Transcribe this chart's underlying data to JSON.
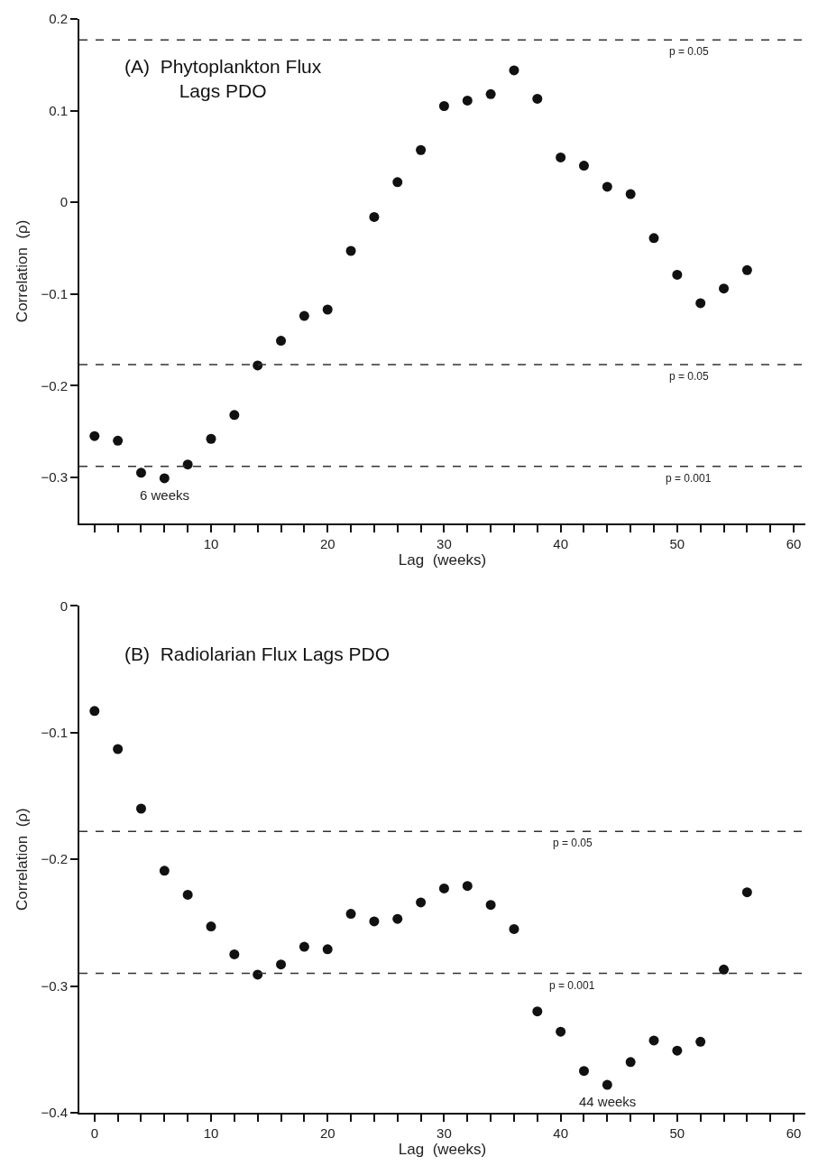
{
  "chart_data": [
    {
      "type": "scatter",
      "title": "(A)  Phytoplankton Flux\nLags PDO",
      "xlabel": "Lag  (weeks)",
      "ylabel": "Correlation  (ρ)",
      "marker": "circle",
      "x": [
        0,
        2,
        4,
        6,
        8,
        10,
        12,
        14,
        16,
        18,
        20,
        22,
        24,
        26,
        28,
        30,
        32,
        34,
        36,
        38,
        40,
        42,
        44,
        46,
        48,
        50,
        52,
        54,
        56
      ],
      "series": [
        {
          "color": "#111111",
          "values": [
            -0.255,
            -0.26,
            -0.295,
            -0.301,
            -0.286,
            -0.258,
            -0.232,
            -0.178,
            -0.151,
            -0.124,
            -0.117,
            -0.053,
            -0.016,
            0.022,
            0.057,
            0.105,
            0.111,
            0.118,
            0.144,
            0.113,
            0.049,
            0.04,
            0.017,
            0.009,
            -0.039,
            -0.079,
            -0.11,
            -0.094,
            -0.074
          ]
        }
      ],
      "xlim": [
        -1.3,
        61
      ],
      "ylim": [
        -0.35,
        0.2
      ],
      "xticks": [
        {
          "value": 0,
          "label": null
        },
        {
          "value": 2,
          "label": null
        },
        {
          "value": 4,
          "label": null
        },
        {
          "value": 6,
          "label": null
        },
        {
          "value": 8,
          "label": null
        },
        10,
        {
          "value": 12,
          "label": null
        },
        {
          "value": 14,
          "label": null
        },
        {
          "value": 16,
          "label": null
        },
        {
          "value": 18,
          "label": null
        },
        20,
        {
          "value": 22,
          "label": null
        },
        {
          "value": 24,
          "label": null
        },
        {
          "value": 26,
          "label": null
        },
        {
          "value": 28,
          "label": null
        },
        30,
        {
          "value": 32,
          "label": null
        },
        {
          "value": 34,
          "label": null
        },
        {
          "value": 36,
          "label": null
        },
        {
          "value": 38,
          "label": null
        },
        40,
        {
          "value": 42,
          "label": null
        },
        {
          "value": 44,
          "label": null
        },
        {
          "value": 46,
          "label": null
        },
        {
          "value": 48,
          "label": null
        },
        50,
        {
          "value": 52,
          "label": null
        },
        {
          "value": 54,
          "label": null
        },
        {
          "value": 56,
          "label": null
        },
        {
          "value": 58,
          "label": null
        },
        60
      ],
      "yticks": [
        {
          "value": -0.3,
          "label": "−0.3"
        },
        {
          "value": -0.2,
          "label": "−0.2"
        },
        {
          "value": -0.1,
          "label": "−0.1"
        },
        0,
        0.1,
        0.2
      ],
      "ref_lines": [
        {
          "axis": "y",
          "value": 0.177,
          "line_style": "dashed",
          "color": "#333333"
        },
        {
          "axis": "y",
          "value": -0.177,
          "line_style": "dashed",
          "color": "#333333"
        },
        {
          "axis": "y",
          "value": -0.288,
          "line_style": "dashed",
          "color": "#333333"
        }
      ],
      "annotations": [
        {
          "text": "6 weeks",
          "x": 6,
          "y": -0.301
        },
        {
          "text": "p = 0.05",
          "x": 51,
          "y": 0.177
        },
        {
          "text": "p = 0.05",
          "x": 51,
          "y": -0.177
        },
        {
          "text": "p = 0.001",
          "x": 51,
          "y": -0.288
        }
      ]
    },
    {
      "type": "scatter",
      "title": "(B)  Radiolarian Flux Lags PDO",
      "xlabel": "Lag  (weeks)",
      "ylabel": "Correlation  (ρ)",
      "marker": "circle",
      "x": [
        0,
        2,
        4,
        6,
        8,
        10,
        12,
        14,
        16,
        18,
        20,
        22,
        24,
        26,
        28,
        30,
        32,
        34,
        36,
        38,
        40,
        42,
        44,
        46,
        48,
        50,
        52,
        54,
        56
      ],
      "series": [
        {
          "color": "#111111",
          "values": [
            -0.083,
            -0.113,
            -0.16,
            -0.209,
            -0.228,
            -0.253,
            -0.275,
            -0.291,
            -0.283,
            -0.269,
            -0.271,
            -0.243,
            -0.249,
            -0.247,
            -0.234,
            -0.223,
            -0.221,
            -0.236,
            -0.255,
            -0.32,
            -0.336,
            -0.367,
            -0.378,
            -0.36,
            -0.343,
            -0.351,
            -0.344,
            -0.287,
            -0.226
          ]
        }
      ],
      "xlim": [
        -1.3,
        61
      ],
      "ylim": [
        -0.4,
        0
      ],
      "xticks": [
        0,
        {
          "value": 2,
          "label": null
        },
        {
          "value": 4,
          "label": null
        },
        {
          "value": 6,
          "label": null
        },
        {
          "value": 8,
          "label": null
        },
        10,
        {
          "value": 12,
          "label": null
        },
        {
          "value": 14,
          "label": null
        },
        {
          "value": 16,
          "label": null
        },
        {
          "value": 18,
          "label": null
        },
        20,
        {
          "value": 22,
          "label": null
        },
        {
          "value": 24,
          "label": null
        },
        {
          "value": 26,
          "label": null
        },
        {
          "value": 28,
          "label": null
        },
        30,
        {
          "value": 32,
          "label": null
        },
        {
          "value": 34,
          "label": null
        },
        {
          "value": 36,
          "label": null
        },
        {
          "value": 38,
          "label": null
        },
        40,
        {
          "value": 42,
          "label": null
        },
        {
          "value": 44,
          "label": null
        },
        {
          "value": 46,
          "label": null
        },
        {
          "value": 48,
          "label": null
        },
        50,
        {
          "value": 52,
          "label": null
        },
        {
          "value": 54,
          "label": null
        },
        {
          "value": 56,
          "label": null
        },
        {
          "value": 58,
          "label": null
        },
        60
      ],
      "yticks": [
        {
          "value": -0.4,
          "label": "−0.4"
        },
        {
          "value": -0.3,
          "label": "−0.3"
        },
        {
          "value": -0.2,
          "label": "−0.2"
        },
        {
          "value": -0.1,
          "label": "−0.1"
        },
        0
      ],
      "ref_lines": [
        {
          "axis": "y",
          "value": -0.178,
          "line_style": "dashed",
          "color": "#333333"
        },
        {
          "axis": "y",
          "value": -0.29,
          "line_style": "dashed",
          "color": "#333333"
        }
      ],
      "annotations": [
        {
          "text": "44 weeks",
          "x": 44,
          "y": -0.378
        },
        {
          "text": "p = 0.05",
          "x": 41,
          "y": -0.178
        },
        {
          "text": "p = 0.001",
          "x": 41,
          "y": -0.29
        }
      ]
    }
  ]
}
